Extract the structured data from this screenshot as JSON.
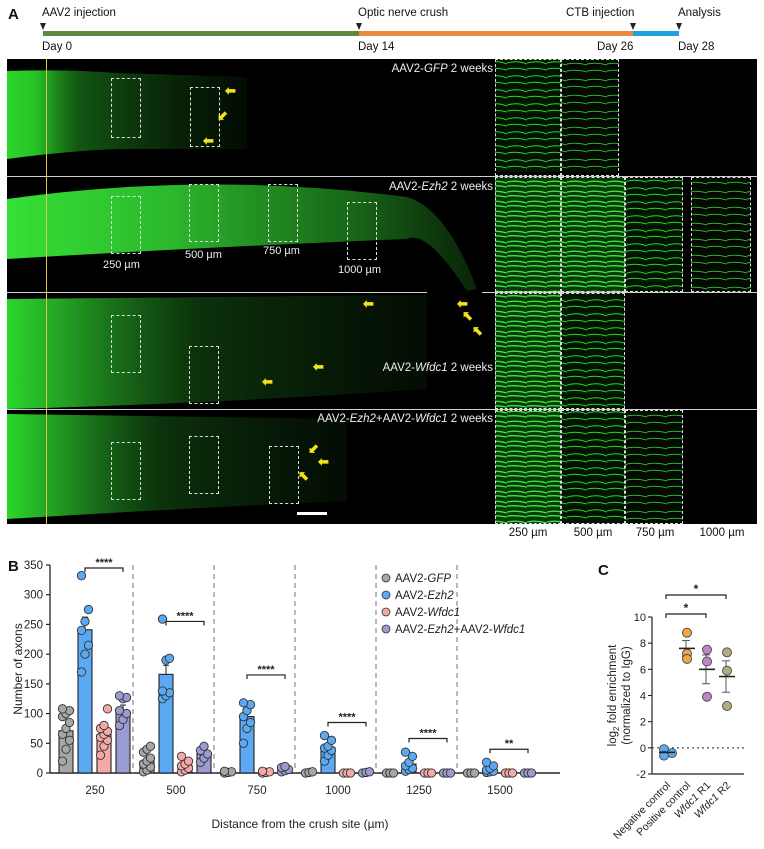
{
  "panel_a": {
    "letter": "A",
    "timeline": {
      "events": [
        {
          "top": "AAV2 injection",
          "bottom": "Day 0"
        },
        {
          "top": "Optic nerve crush",
          "bottom": "Day 14"
        },
        {
          "top": "CTB injection",
          "bottom": "Day 26"
        },
        {
          "top": "Analysis",
          "bottom": "Day 28"
        }
      ],
      "segment_colors": [
        "#5b8a3c",
        "#ea8a3e",
        "#1fa3e0"
      ]
    },
    "rows": [
      {
        "prefix": "AAV2-",
        "gene": "GFP",
        "suffix": " 2 weeks"
      },
      {
        "prefix": "AAV2-",
        "gene": "Ezh2",
        "suffix": " 2 weeks"
      },
      {
        "prefix": "AAV2-",
        "gene": "Wfdc1",
        "suffix": " 2 weeks"
      },
      {
        "prefix": "AAV2-",
        "gene": "Ezh2",
        "mid": "+AAV2-",
        "gene2": "Wfdc1",
        "suffix": " 2 weeks"
      }
    ],
    "distance_labels": [
      "250 µm",
      "500 µm",
      "750 µm",
      "1000 µm"
    ],
    "inset_labels": [
      "250 µm",
      "500 µm",
      "750 µm",
      "1000 µm"
    ]
  },
  "panel_b": {
    "letter": "B"
  },
  "panel_c": {
    "letter": "C"
  },
  "chart_data": [
    {
      "type": "bar",
      "panel": "B",
      "title": "",
      "xlabel": "Distance from the crush site (µm)",
      "ylabel": "Number of axons",
      "ylim": [
        0,
        350
      ],
      "yticks": [
        0,
        50,
        100,
        150,
        200,
        250,
        300,
        350
      ],
      "categories": [
        "250",
        "500",
        "750",
        "1000",
        "1250",
        "1500"
      ],
      "series": [
        {
          "name": "AAV2-GFP",
          "color": "#a6a6a6",
          "values": [
            71,
            20,
            2,
            1,
            0,
            0
          ],
          "points": [
            [
              20,
              40,
              55,
              65,
              75,
              85,
              95,
              100,
              105,
              108
            ],
            [
              2,
              5,
              10,
              15,
              20,
              25,
              35,
              40,
              45
            ],
            [
              0,
              1,
              2,
              3
            ],
            [
              0,
              1,
              2
            ],
            [
              0,
              0,
              0
            ],
            [
              0,
              0,
              0
            ]
          ]
        },
        {
          "name": "AAV2-Ezh2",
          "color": "#5aa9f2",
          "values": [
            241,
            166,
            95,
            43,
            15,
            6
          ],
          "points": [
            [
              170,
              200,
              215,
              240,
              255,
              275,
              332
            ],
            [
              125,
              130,
              135,
              138,
              190,
              193,
              259
            ],
            [
              50,
              75,
              85,
              95,
              105,
              115,
              118
            ],
            [
              20,
              30,
              38,
              42,
              45,
              55,
              63
            ],
            [
              3,
              6,
              8,
              12,
              18,
              28,
              35
            ],
            [
              1,
              2,
              3,
              5,
              8,
              12,
              18
            ]
          ]
        },
        {
          "name": "AAV2-Wfdc1",
          "color": "#f4a9a6",
          "values": [
            65,
            13,
            2,
            0,
            0,
            0
          ],
          "points": [
            [
              30,
              45,
              55,
              60,
              65,
              70,
              75,
              80,
              108
            ],
            [
              2,
              5,
              8,
              12,
              15,
              20,
              28
            ],
            [
              0,
              1,
              2,
              3
            ],
            [
              0,
              0,
              0
            ],
            [
              0,
              0,
              0
            ],
            [
              0,
              0,
              0
            ]
          ]
        },
        {
          "name": "AAV2-Ezh2+AAV2-Wfdc1",
          "color": "#9a9bd0",
          "values": [
            104,
            33,
            6,
            1,
            0,
            0
          ],
          "points": [
            [
              80,
              90,
              100,
              105,
              125,
              127,
              130
            ],
            [
              18,
              25,
              32,
              38,
              45
            ],
            [
              2,
              4,
              6,
              9,
              11
            ],
            [
              0,
              1,
              2
            ],
            [
              0,
              0,
              0
            ],
            [
              0,
              0,
              0
            ]
          ]
        }
      ],
      "significance": [
        {
          "category": "250",
          "label": "****",
          "y": 345
        },
        {
          "category": "500",
          "label": "****",
          "y": 255
        },
        {
          "category": "750",
          "label": "****",
          "y": 165
        },
        {
          "category": "1000",
          "label": "****",
          "y": 85
        },
        {
          "category": "1250",
          "label": "****",
          "y": 58
        },
        {
          "category": "1500",
          "label": "**",
          "y": 40
        }
      ],
      "legend": [
        "AAV2-GFP",
        "AAV2-Ezh2",
        "AAV2-Wfdc1",
        "AAV2-Ezh2+AAV2-Wfdc1"
      ],
      "legend_position": "upper right"
    },
    {
      "type": "scatter",
      "panel": "C",
      "ylabel": "log2 fold enrichment (normalized to IgG)",
      "ylim": [
        -2,
        10
      ],
      "yticks": [
        -2,
        0,
        2,
        4,
        6,
        8,
        10
      ],
      "categories": [
        "Negative control",
        "Positive control",
        "Wfdc1 R1",
        "Wfdc1 R2"
      ],
      "series": [
        {
          "name": "Negative control",
          "color": "#5aa9f2",
          "points": [
            -0.1,
            -0.4,
            -0.6
          ],
          "mean": -0.35,
          "sem": 0.15
        },
        {
          "name": "Positive control",
          "color": "#f4a647",
          "points": [
            8.8,
            7.2,
            6.8
          ],
          "mean": 7.6,
          "sem": 0.6
        },
        {
          "name": "Wfdc1 R1",
          "color": "#b888c9",
          "points": [
            7.5,
            6.6,
            3.9
          ],
          "mean": 6.0,
          "sem": 1.1
        },
        {
          "name": "Wfdc1 R2",
          "color": "#b3ab82",
          "points": [
            7.3,
            5.9,
            3.2
          ],
          "mean": 5.45,
          "sem": 1.2
        }
      ],
      "reference_line": 0,
      "significance": [
        {
          "from": "Negative control",
          "to": "Wfdc1 R1",
          "label": "*"
        },
        {
          "from": "Negative control",
          "to": "Wfdc1 R2",
          "label": "*"
        }
      ]
    }
  ]
}
